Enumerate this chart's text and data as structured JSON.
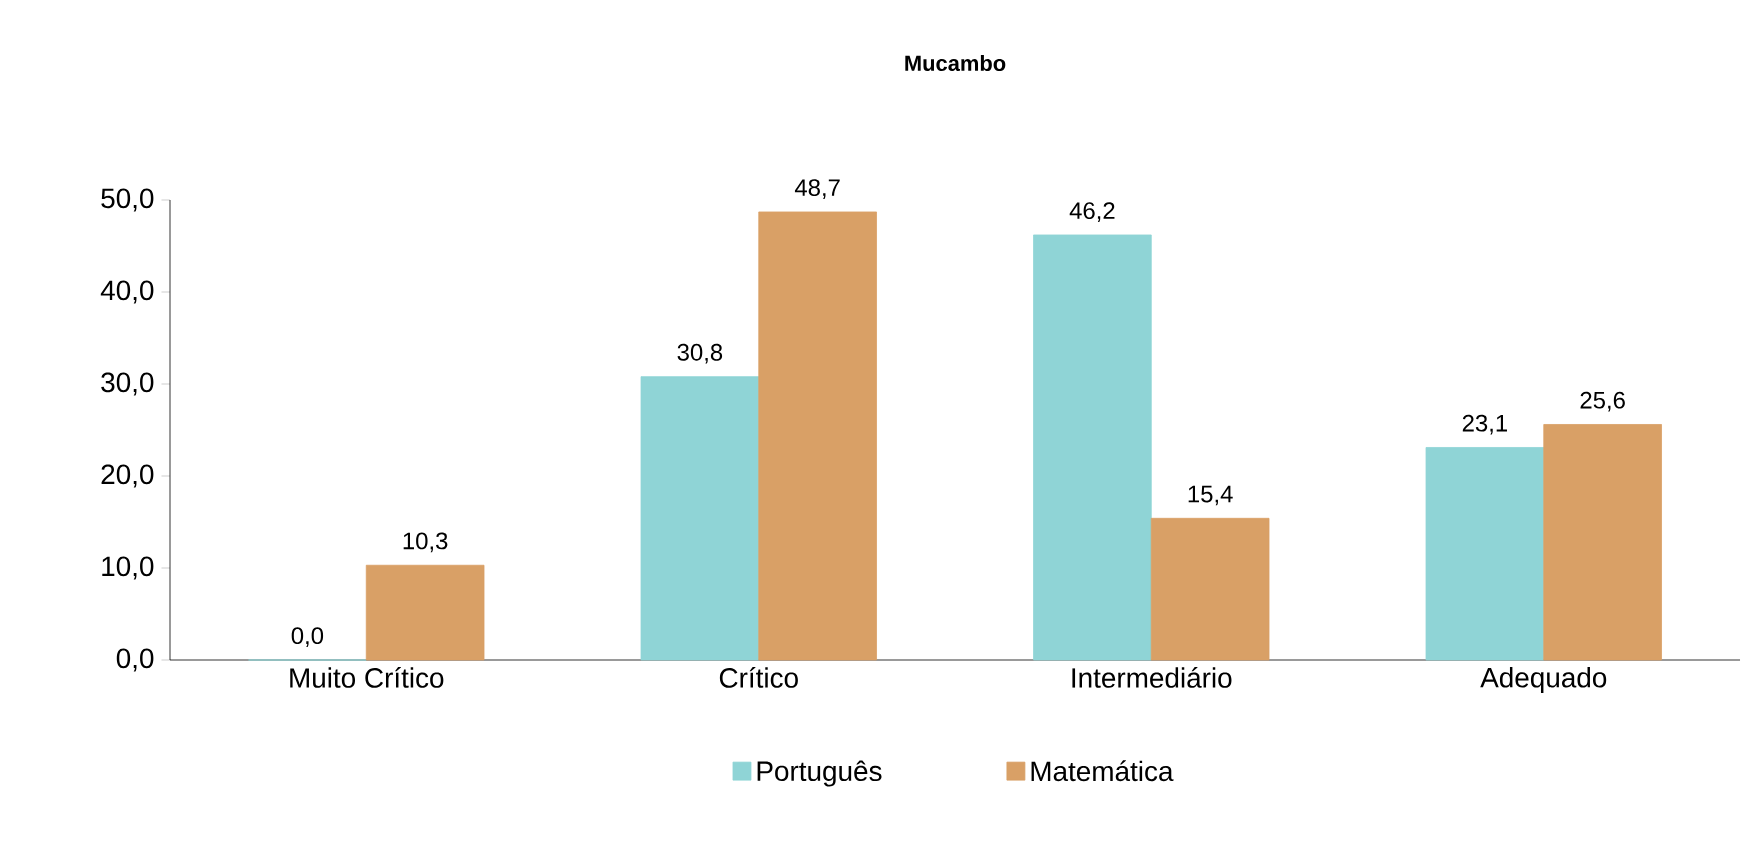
{
  "chart_data": {
    "type": "bar",
    "title": "Mucambo",
    "categories": [
      "Muito Crítico",
      "Crítico",
      "Intermediário",
      "Adequado"
    ],
    "series": [
      {
        "name": "Português",
        "color": "#8fd4d6",
        "values": [
          0.0,
          30.8,
          46.2,
          23.1
        ],
        "value_labels": [
          "0,0",
          "30,8",
          "46,2",
          "23,1"
        ]
      },
      {
        "name": "Matemática",
        "color": "#d9a066",
        "values": [
          10.3,
          48.7,
          15.4,
          25.6
        ],
        "value_labels": [
          "10,3",
          "48,7",
          "15,4",
          "25,6"
        ]
      }
    ],
    "ylim": [
      0,
      50
    ],
    "yticks": [
      {
        "value": 0,
        "label": "0,0"
      },
      {
        "value": 10,
        "label": "10,0"
      },
      {
        "value": 20,
        "label": "20,0"
      },
      {
        "value": 30,
        "label": "30,0"
      },
      {
        "value": 40,
        "label": "40,0"
      },
      {
        "value": 50,
        "label": "50,0"
      }
    ],
    "legend": "bottom",
    "grid": false
  }
}
